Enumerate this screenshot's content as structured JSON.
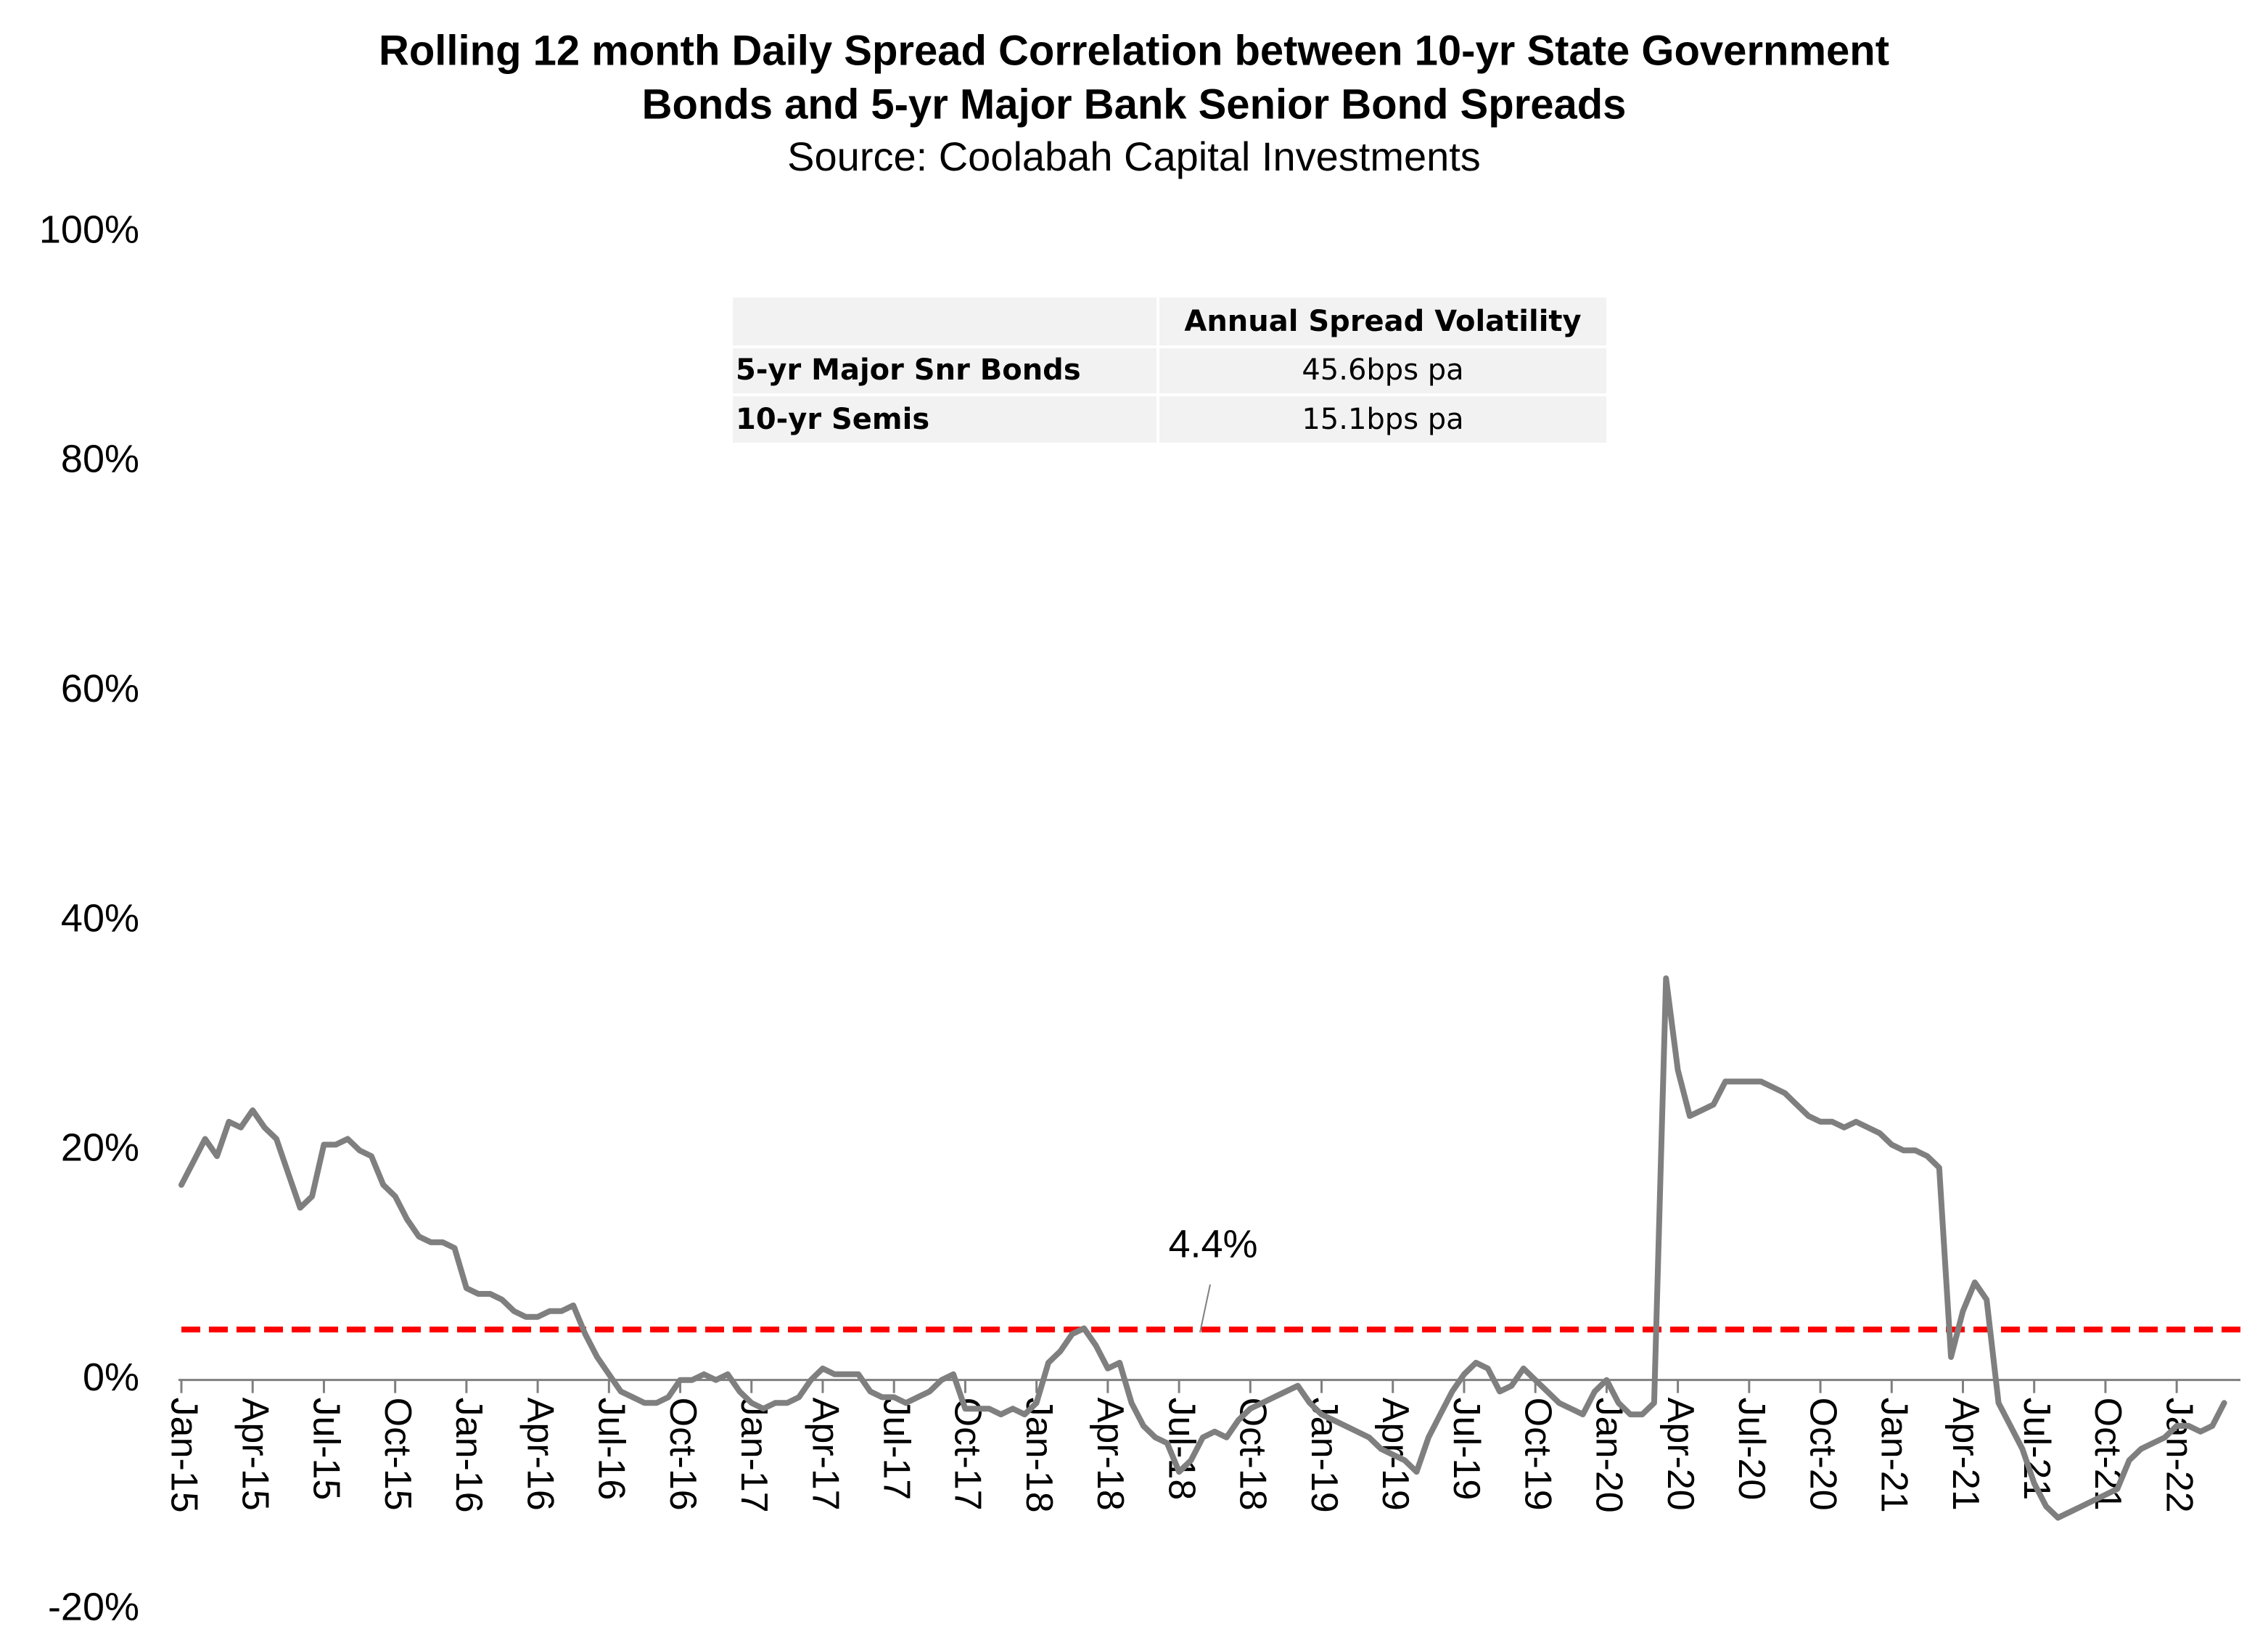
{
  "chart_data": {
    "type": "line",
    "title": [
      "Rolling 12 month Daily Spread Correlation between 10-yr State Government",
      "Bonds and 5-yr Major Bank Senior Bond Spreads"
    ],
    "subtitle": "Source: Coolabah Capital Investments",
    "categories": [
      "Jan-15",
      null,
      null,
      null,
      null,
      null,
      "Apr-15",
      null,
      null,
      null,
      null,
      null,
      "Jul-15",
      null,
      null,
      null,
      null,
      null,
      "Oct-15",
      null,
      null,
      null,
      null,
      null,
      "Jan-16",
      null,
      null,
      null,
      null,
      null,
      "Apr-16",
      null,
      null,
      null,
      null,
      null,
      "Jul-16",
      null,
      null,
      null,
      null,
      null,
      "Oct-16",
      null,
      null,
      null,
      null,
      null,
      "Jan-17",
      null,
      null,
      null,
      null,
      null,
      "Apr-17",
      null,
      null,
      null,
      null,
      null,
      "Jul-17",
      null,
      null,
      null,
      null,
      null,
      "Oct-17",
      null,
      null,
      null,
      null,
      null,
      "Jan-18",
      null,
      null,
      null,
      null,
      null,
      "Apr-18",
      null,
      null,
      null,
      null,
      null,
      "Jul-18",
      null,
      null,
      null,
      null,
      null,
      "Oct-18",
      null,
      null,
      null,
      null,
      null,
      "Jan-19",
      null,
      null,
      null,
      null,
      null,
      "Apr-19",
      null,
      null,
      null,
      null,
      null,
      "Jul-19",
      null,
      null,
      null,
      null,
      null,
      "Oct-19",
      null,
      null,
      null,
      null,
      null,
      "Jan-20",
      null,
      null,
      null,
      null,
      null,
      "Apr-20",
      null,
      null,
      null,
      null,
      null,
      "Jul-20",
      null,
      null,
      null,
      null,
      null,
      "Oct-20",
      null,
      null,
      null,
      null,
      null,
      "Jan-21",
      null,
      null,
      null,
      null,
      null,
      "Apr-21",
      null,
      null,
      null,
      null,
      null,
      "Jul-21",
      null,
      null,
      null,
      null,
      null,
      "Oct-21",
      null,
      null,
      null,
      null,
      null,
      "Jan-22",
      null,
      null,
      null,
      null
    ],
    "values": [
      17,
      19,
      21,
      19.5,
      22.5,
      22,
      23.5,
      22,
      21,
      18,
      15,
      16,
      20.5,
      20.5,
      21,
      20,
      19.5,
      17,
      16,
      14,
      12.5,
      12,
      12,
      11.5,
      8,
      7.5,
      7.5,
      7,
      6,
      5.5,
      5.5,
      6,
      6,
      6.5,
      4,
      2,
      0.5,
      -1,
      -1.5,
      -2,
      -2,
      -1.5,
      0,
      0,
      0.5,
      0,
      0.5,
      -1,
      -2,
      -2.5,
      -2,
      -2,
      -1.5,
      0,
      1,
      0.5,
      0.5,
      0.5,
      -1,
      -1.5,
      -1.5,
      -2,
      -1.5,
      -1,
      0,
      0.5,
      -2.5,
      -2.5,
      -2.5,
      -3,
      -2.5,
      -3,
      -2,
      1.5,
      2.5,
      4,
      4.5,
      3,
      1,
      1.5,
      -2,
      -4,
      -5,
      -5.5,
      -8,
      -7,
      -5,
      -4.5,
      -5,
      -3.5,
      -2.5,
      -2,
      -1.5,
      -1,
      -0.5,
      -2,
      -3,
      -3.5,
      -4,
      -4.5,
      -5,
      -6,
      -6.5,
      -7,
      -8,
      -5,
      -3,
      -1,
      0.5,
      1.5,
      1,
      -1,
      -0.5,
      1,
      0,
      -1,
      -2,
      -2.5,
      -3,
      -1,
      0,
      -2,
      -3,
      -3,
      -2,
      35,
      27,
      23,
      23.5,
      24,
      26,
      26,
      26,
      26,
      25.5,
      25,
      24,
      23,
      22.5,
      22.5,
      22,
      22.5,
      22,
      21.5,
      20.5,
      20,
      20,
      19.5,
      18.5,
      2,
      6,
      8.5,
      7,
      -2,
      -4,
      -6,
      -9,
      -11,
      -12,
      -11.5,
      -11,
      -10.5,
      -10,
      -9.5,
      -7,
      -6,
      -5.5,
      -5,
      -4,
      -4,
      -4.5,
      -4,
      -2
    ],
    "color": "#7f7f7f",
    "ylim": [
      -20,
      100
    ],
    "yticks": [
      {
        "value": -20,
        "label": "-20%"
      },
      {
        "value": 0,
        "label": "0%"
      },
      {
        "value": 20,
        "label": "20%"
      },
      {
        "value": 40,
        "label": "40%"
      },
      {
        "value": 60,
        "label": "60%"
      },
      {
        "value": 80,
        "label": "80%"
      },
      {
        "value": 100,
        "label": "100%"
      }
    ],
    "grid": false,
    "reference_lines": [
      {
        "value": 4.4,
        "label": "4.4%",
        "color": "#ff0000",
        "style": "dashed"
      }
    ]
  },
  "table": {
    "header": "Annual Spread Volatility",
    "rows": [
      [
        "5-yr Major Snr Bonds",
        "45.6bps pa"
      ],
      [
        "10-yr Semis",
        "15.1bps pa"
      ]
    ]
  }
}
